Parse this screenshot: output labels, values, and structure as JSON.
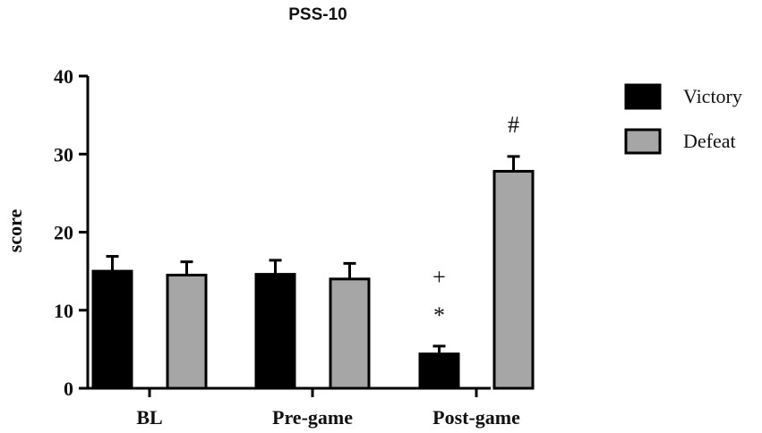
{
  "chart_data": {
    "type": "bar",
    "title": "PSS-10",
    "ylabel": "score",
    "xlabel": "",
    "ylim": [
      0,
      40
    ],
    "yticks": [
      0,
      10,
      20,
      30,
      40
    ],
    "categories": [
      "BL",
      "Pre-game",
      "Post-game"
    ],
    "series": [
      {
        "name": "Victory",
        "values": [
          15.0,
          14.6,
          4.4
        ],
        "errors": [
          1.9,
          1.8,
          1.0
        ],
        "color": "#000000"
      },
      {
        "name": "Defeat",
        "values": [
          14.5,
          14.0,
          27.8
        ],
        "errors": [
          1.7,
          2.0,
          1.9
        ],
        "color": "#a6a6a6"
      }
    ],
    "annotations": [
      {
        "text": "+",
        "category": "Post-game",
        "series": "Victory"
      },
      {
        "text": "*",
        "category": "Post-game",
        "series": "Victory"
      },
      {
        "text": "#",
        "category": "Post-game",
        "series": "Defeat"
      }
    ],
    "legend_position": "top-right",
    "grid": false
  }
}
